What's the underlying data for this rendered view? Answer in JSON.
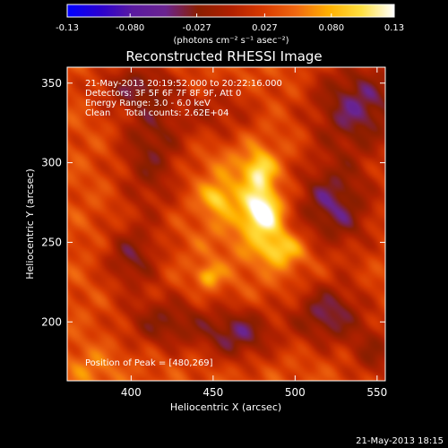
{
  "chart_data": {
    "type": "heatmap",
    "title": "Reconstructed RHESSI Image",
    "xlabel": "Heliocentric X (arcsec)",
    "ylabel": "Heliocentric Y (arcsec)",
    "xlim": [
      361,
      555
    ],
    "ylim": [
      163,
      360
    ],
    "x_ticks": [
      400,
      450,
      500,
      550
    ],
    "y_ticks": [
      200,
      250,
      300,
      350
    ],
    "colorbar": {
      "min": -0.13,
      "max": 0.13,
      "tick_values": [
        -0.13,
        -0.08,
        -0.027,
        0.027,
        0.08,
        0.13
      ],
      "tick_labels": [
        "-0.13",
        "-0.080",
        "-0.027",
        "0.027",
        "0.080",
        "0.13"
      ],
      "label": "(photons cm⁻² s⁻¹ asec⁻²)"
    },
    "annotations": [
      "21-May-2013 20:19:52.000 to 20:22:16.000",
      "Detectors: 3F 5F 6F 7F 8F 9F, Att 0",
      "Energy Range: 3.0 - 6.0 keV",
      "Clean     Total counts: 2.62E+04"
    ],
    "peak_label": "Position of Peak = [480,269]",
    "peak": [
      480,
      269
    ],
    "background_level": 0.035,
    "sources": [
      {
        "x": 480,
        "y": 269,
        "sx": 8,
        "sy": 10,
        "amp": 0.095
      },
      {
        "x": 478,
        "y": 295,
        "sx": 6,
        "sy": 8,
        "amp": 0.06
      },
      {
        "x": 490,
        "y": 246,
        "sx": 9,
        "sy": 7,
        "amp": 0.055
      },
      {
        "x": 452,
        "y": 278,
        "sx": 6,
        "sy": 6,
        "amp": 0.045
      },
      {
        "x": 447,
        "y": 229,
        "sx": 5,
        "sy": 5,
        "amp": 0.05
      },
      {
        "x": 468,
        "y": 283,
        "sx": 20,
        "sy": 32,
        "amp": 0.03
      },
      {
        "x": 505,
        "y": 245,
        "sx": 16,
        "sy": 14,
        "amp": 0.02
      },
      {
        "x": 375,
        "y": 170,
        "sx": 12,
        "sy": 10,
        "amp": 0.025
      }
    ],
    "negative_regions": [
      {
        "x": 412,
        "y": 308,
        "sx": 14,
        "sy": 30,
        "amp": -0.06
      },
      {
        "x": 400,
        "y": 240,
        "sx": 12,
        "sy": 14,
        "amp": -0.06
      },
      {
        "x": 455,
        "y": 330,
        "sx": 18,
        "sy": 14,
        "amp": -0.045
      },
      {
        "x": 522,
        "y": 272,
        "sx": 18,
        "sy": 22,
        "amp": -0.08
      },
      {
        "x": 538,
        "y": 336,
        "sx": 20,
        "sy": 20,
        "amp": -0.08
      },
      {
        "x": 520,
        "y": 205,
        "sx": 16,
        "sy": 14,
        "amp": -0.075
      },
      {
        "x": 465,
        "y": 193,
        "sx": 16,
        "sy": 12,
        "amp": -0.075
      },
      {
        "x": 420,
        "y": 200,
        "sx": 18,
        "sy": 12,
        "amp": -0.06
      },
      {
        "x": 400,
        "y": 348,
        "sx": 16,
        "sy": 10,
        "amp": -0.05
      },
      {
        "x": 548,
        "y": 180,
        "sx": 10,
        "sy": 12,
        "amp": -0.05
      }
    ]
  },
  "footer": {
    "timestamp": "21-May-2013 18:15"
  },
  "colors": {
    "colormap": [
      "#0000ff",
      "#2a00d0",
      "#5a1aa0",
      "#6a2490",
      "#8a1e00",
      "#b02000",
      "#d83a00",
      "#f06810",
      "#ffb000",
      "#ffe040",
      "#ffffff"
    ],
    "text": "#ffffff",
    "background": "#000000"
  }
}
